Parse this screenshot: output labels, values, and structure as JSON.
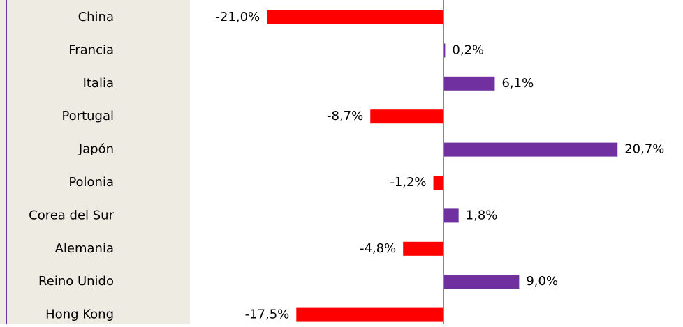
{
  "chart_data": {
    "type": "barh",
    "categories": [
      "China",
      "Francia",
      "Italia",
      "Portugal",
      "Japón",
      "Polonia",
      "Corea del Sur",
      "Alemania",
      "Reino Unido",
      "Hong Kong"
    ],
    "values": [
      -21.0,
      0.2,
      6.1,
      -8.7,
      20.7,
      -1.2,
      1.8,
      -4.8,
      9.0,
      -17.5
    ],
    "value_labels": [
      "-21,0%",
      "0,2%",
      "6,1%",
      "-8,7%",
      "20,7%",
      "-1,2%",
      "1,8%",
      "-4,8%",
      "9,0%",
      "-17,5%"
    ],
    "colors": [
      "#ff0000",
      "#7030a0",
      "#7030a0",
      "#ff0000",
      "#7030a0",
      "#ff0000",
      "#7030a0",
      "#ff0000",
      "#7030a0",
      "#ff0000"
    ],
    "xlim": [
      -25,
      25
    ]
  }
}
